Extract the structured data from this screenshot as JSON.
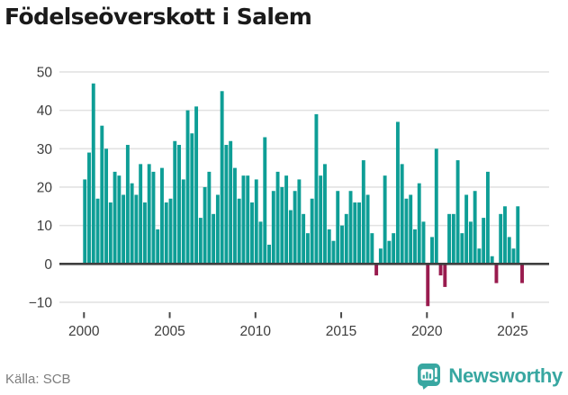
{
  "chart": {
    "title": "Födelseöverskott i Salem",
    "y_tick_labels": [
      "50",
      "40",
      "30",
      "20",
      "10",
      "0",
      "−10"
    ],
    "y_tick_values": [
      50,
      40,
      30,
      20,
      10,
      0,
      -10
    ],
    "x_tick_labels": [
      "2000",
      "2005",
      "2010",
      "2015",
      "2020",
      "2025"
    ],
    "positive_color": "#0e9e96",
    "negative_color": "#991b4e",
    "gridline_color": "#e2e2e2",
    "zero_line_color": "#3f3f3f",
    "axis_text_color": "#3d3d3d",
    "chart_data": {
      "type": "bar",
      "title": "Födelseöverskott i Salem",
      "x_start": "2000-Q1",
      "x_end": "2025-Q3",
      "frequency": "quarterly",
      "ylim": [
        -13,
        51
      ],
      "grid": true,
      "values": [
        22,
        29,
        47,
        17,
        36,
        30,
        16,
        24,
        23,
        18,
        31,
        21,
        18,
        26,
        16,
        26,
        24,
        9,
        25,
        16,
        17,
        32,
        31,
        22,
        40,
        34,
        41,
        12,
        20,
        24,
        13,
        18,
        45,
        31,
        32,
        25,
        17,
        23,
        23,
        16,
        22,
        11,
        33,
        5,
        19,
        24,
        20,
        23,
        14,
        19,
        22,
        13,
        8,
        17,
        39,
        23,
        26,
        9,
        6,
        19,
        10,
        13,
        19,
        16,
        16,
        27,
        18,
        8,
        -3,
        4,
        23,
        6,
        8,
        37,
        26,
        17,
        18,
        9,
        21,
        11,
        -11,
        7,
        30,
        -3,
        -6,
        13,
        13,
        27,
        8,
        18,
        11,
        19,
        4,
        12,
        24,
        2,
        -5,
        13,
        15,
        7,
        4,
        15,
        -5
      ]
    }
  },
  "footer": {
    "source": "Källa: SCB",
    "brand": "Newsworthy"
  },
  "icons": {
    "logo": "newsworthy-bar-chart-badge"
  }
}
